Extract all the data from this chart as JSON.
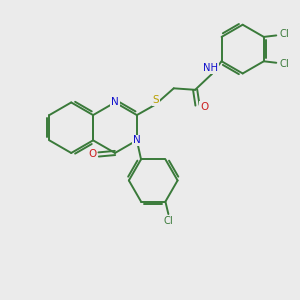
{
  "background_color": "#ebebeb",
  "bond_color": "#3a7a3a",
  "n_color": "#1010cc",
  "o_color": "#cc2020",
  "s_color": "#b8a000",
  "cl_color": "#3a7a3a",
  "line_width": 1.4,
  "dbo": 0.06,
  "xlim": [
    0,
    10
  ],
  "ylim": [
    0,
    10
  ]
}
